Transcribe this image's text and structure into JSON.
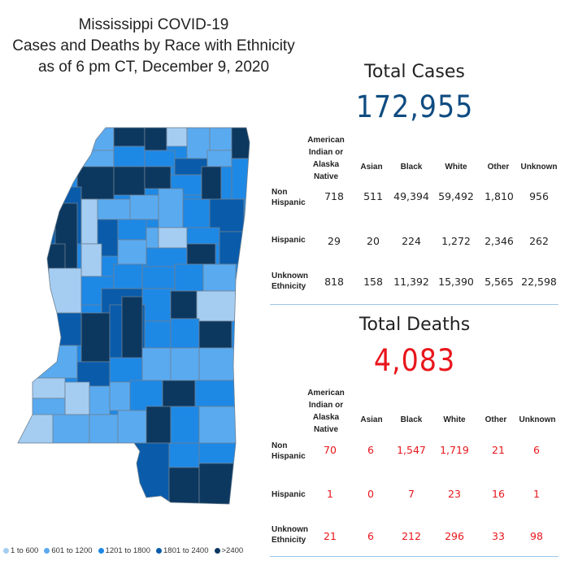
{
  "title": {
    "line1": "Mississippi COVID-19",
    "line2": "Cases and Deaths by Race with Ethnicity",
    "line3": "as of 6 pm CT, December 9, 2020"
  },
  "colors": {
    "c1": "#a5cdf2",
    "c2": "#5aaaf0",
    "c3": "#1e88e5",
    "c4": "#0a5cab",
    "c5": "#0c3860",
    "cases_number": "#0f4c81",
    "deaths_number": "#e8161c"
  },
  "legend": [
    {
      "label": "1 to 600",
      "color": "#a5cdf2"
    },
    {
      "label": "601 to 1200",
      "color": "#5aaaf0"
    },
    {
      "label": "1201 to 1800",
      "color": "#1e88e5"
    },
    {
      "label": "1801 to 2400",
      "color": "#0a5cab"
    },
    {
      "label": ">2400",
      "color": "#0c3860"
    }
  ],
  "cases": {
    "heading": "Total Cases",
    "total": "172,955",
    "columns": [
      "American Indian or Alaska Native",
      "Asian",
      "Black",
      "White",
      "Other",
      "Unknown"
    ],
    "rows": [
      {
        "label": "Non Hispanic",
        "values": [
          "718",
          "511",
          "49,394",
          "59,492",
          "1,810",
          "956"
        ]
      },
      {
        "label": "Hispanic",
        "values": [
          "29",
          "20",
          "224",
          "1,272",
          "2,346",
          "262"
        ]
      },
      {
        "label": "Unknown Ethnicity",
        "values": [
          "818",
          "158",
          "11,392",
          "15,390",
          "5,565",
          "22,598"
        ]
      }
    ]
  },
  "deaths": {
    "heading": "Total Deaths",
    "total": "4,083",
    "columns": [
      "American Indian or Alaska Native",
      "Asian",
      "Black",
      "White",
      "Other",
      "Unknown"
    ],
    "rows": [
      {
        "label": "Non Hispanic",
        "values": [
          "70",
          "6",
          "1,547",
          "1,719",
          "21",
          "6"
        ]
      },
      {
        "label": "Hispanic",
        "values": [
          "1",
          "0",
          "7",
          "23",
          "16",
          "1"
        ]
      },
      {
        "label": "Unknown Ethnicity",
        "values": [
          "21",
          "6",
          "212",
          "296",
          "33",
          "98"
        ]
      }
    ]
  }
}
